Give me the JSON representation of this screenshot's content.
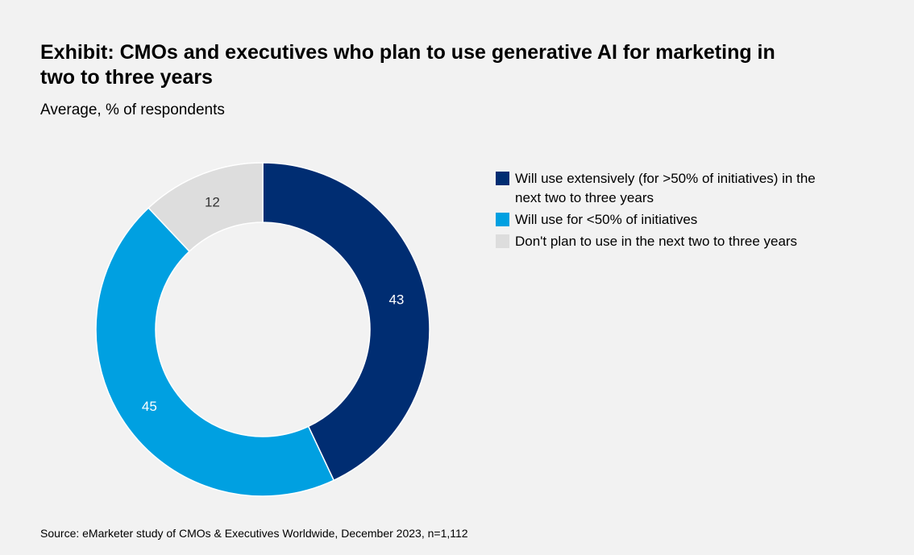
{
  "header": {
    "title": "Exhibit: CMOs and executives who plan to use generative AI for marketing in two to three years",
    "subtitle": "Average, % of respondents"
  },
  "chart_data": {
    "type": "pie",
    "variant": "donut",
    "unit": "% of respondents",
    "legend_position": "right",
    "series": [
      {
        "name": "Will use extensively (for >50% of initiatives) in the next two to three years",
        "value": 43,
        "label": "43",
        "color": "#002d72",
        "label_color": "#ffffff"
      },
      {
        "name": "Will use for <50% of initiatives",
        "value": 45,
        "label": "45",
        "color": "#00a0e1",
        "label_color": "#ffffff"
      },
      {
        "name": "Don't plan to use in the next two to three years",
        "value": 12,
        "label": "12",
        "color": "#dddddd",
        "label_color": "#333333"
      }
    ]
  },
  "footer": {
    "source": "Source: eMarketer study of CMOs & Executives Worldwide, December 2023, n=1,112"
  }
}
